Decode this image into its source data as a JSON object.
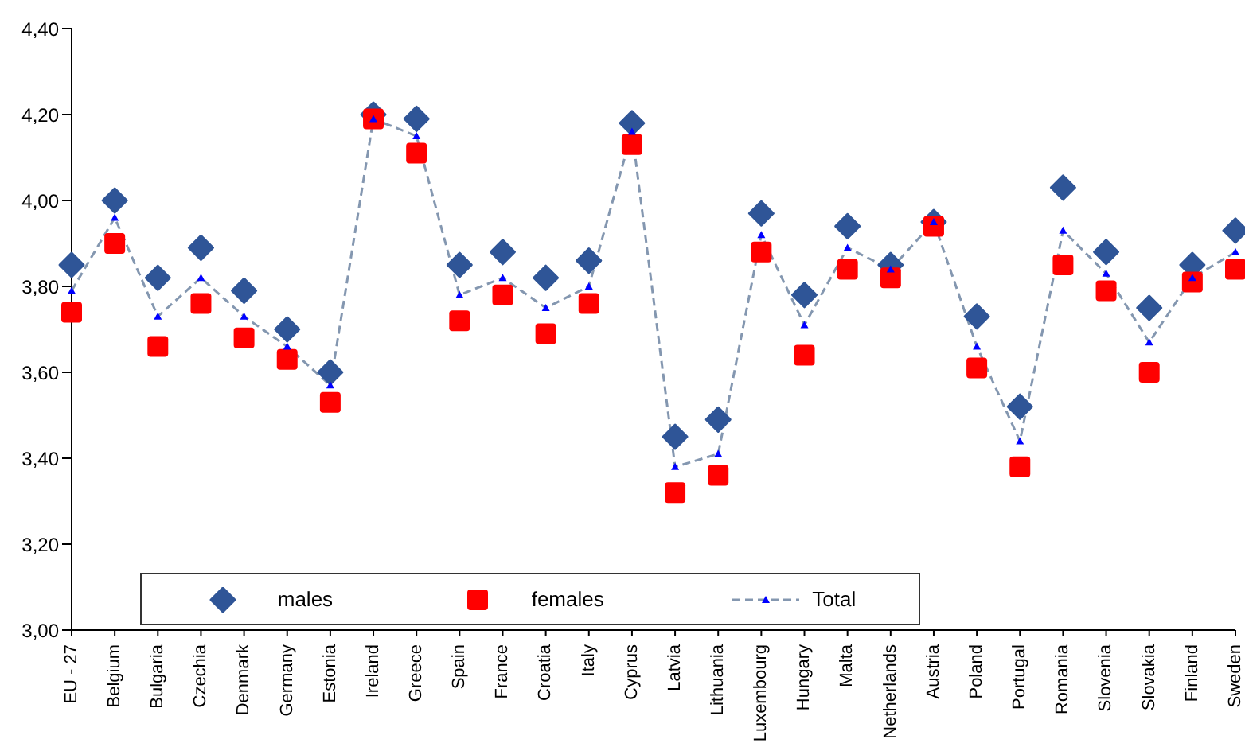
{
  "chart_data": {
    "type": "scatter",
    "categories": [
      "EU - 27",
      "Belgium",
      "Bulgaria",
      "Czechia",
      "Denmark",
      "Germany",
      "Estonia",
      "Ireland",
      "Greece",
      "Spain",
      "France",
      "Croatia",
      "Italy",
      "Cyprus",
      "Latvia",
      "Lithuania",
      "Luxembourg",
      "Hungary",
      "Malta",
      "Netherlands",
      "Austria",
      "Poland",
      "Portugal",
      "Romania",
      "Slovenia",
      "Slovakia",
      "Finland",
      "Sweden"
    ],
    "series": [
      {
        "name": "males",
        "marker": "diamond",
        "color": "#2f5597",
        "values": [
          3.85,
          4.0,
          3.82,
          3.89,
          3.79,
          3.7,
          3.6,
          4.2,
          4.19,
          3.85,
          3.88,
          3.82,
          3.86,
          4.18,
          3.45,
          3.49,
          3.97,
          3.78,
          3.94,
          3.85,
          3.95,
          3.73,
          3.52,
          4.03,
          3.88,
          3.75,
          3.85,
          3.93
        ]
      },
      {
        "name": "females",
        "marker": "square",
        "color": "#ff0000",
        "values": [
          3.74,
          3.9,
          3.66,
          3.76,
          3.68,
          3.63,
          3.53,
          4.19,
          4.11,
          3.72,
          3.78,
          3.69,
          3.76,
          4.13,
          3.32,
          3.36,
          3.88,
          3.64,
          3.84,
          3.82,
          3.94,
          3.61,
          3.38,
          3.85,
          3.79,
          3.6,
          3.81,
          3.84
        ]
      },
      {
        "name": "Total",
        "type": "line",
        "marker": "triangle",
        "line_style": "dashed",
        "color": "#8497b0",
        "values": [
          3.79,
          3.96,
          3.73,
          3.82,
          3.73,
          3.66,
          3.57,
          4.19,
          4.15,
          3.78,
          3.82,
          3.75,
          3.8,
          4.16,
          3.38,
          3.41,
          3.92,
          3.71,
          3.89,
          3.84,
          3.95,
          3.66,
          3.44,
          3.93,
          3.83,
          3.67,
          3.82,
          3.88
        ]
      }
    ],
    "ylim": [
      3.0,
      4.4
    ],
    "yticks": [
      {
        "value": 3.0,
        "label": "3,00"
      },
      {
        "value": 3.2,
        "label": "3,20"
      },
      {
        "value": 3.4,
        "label": "3,40"
      },
      {
        "value": 3.6,
        "label": "3,60"
      },
      {
        "value": 3.8,
        "label": "3,80"
      },
      {
        "value": 4.0,
        "label": "4,00"
      },
      {
        "value": 4.2,
        "label": "4,20"
      },
      {
        "value": 4.4,
        "label": "4,40"
      }
    ],
    "grid": false,
    "legend": "bottom"
  }
}
